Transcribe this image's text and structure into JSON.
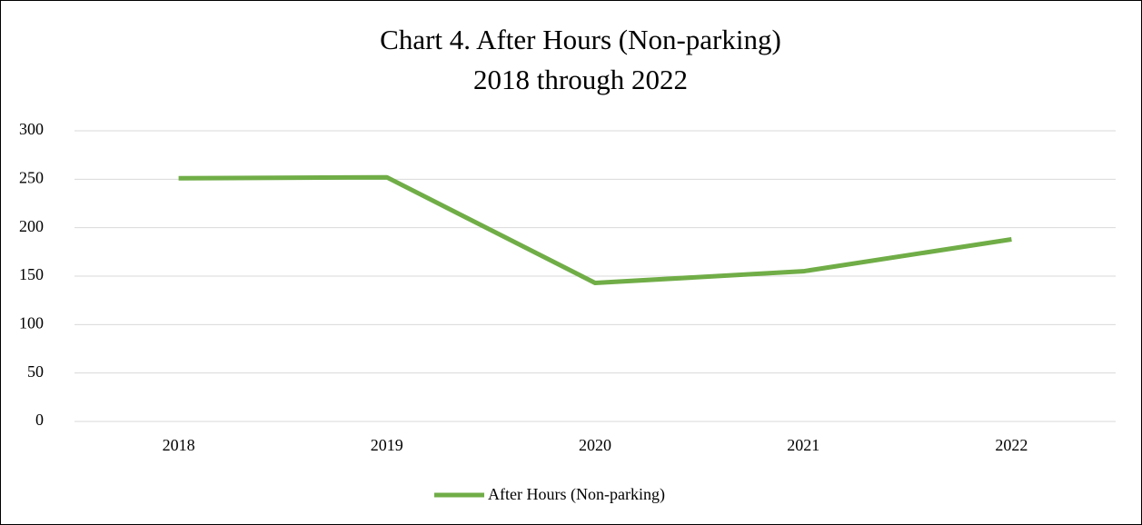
{
  "chart_data": {
    "type": "line",
    "title": "Chart 4. After Hours (Non-parking)",
    "subtitle": "2018 through 2022",
    "categories": [
      "2018",
      "2019",
      "2020",
      "2021",
      "2022"
    ],
    "series": [
      {
        "name": "After Hours (Non-parking)",
        "color": "#70ad47",
        "values": [
          251,
          252,
          143,
          155,
          188
        ]
      }
    ],
    "ylim": [
      0,
      300
    ],
    "yticks": [
      0,
      50,
      100,
      150,
      200,
      250,
      300
    ],
    "grid": true,
    "legend": "bottom"
  }
}
